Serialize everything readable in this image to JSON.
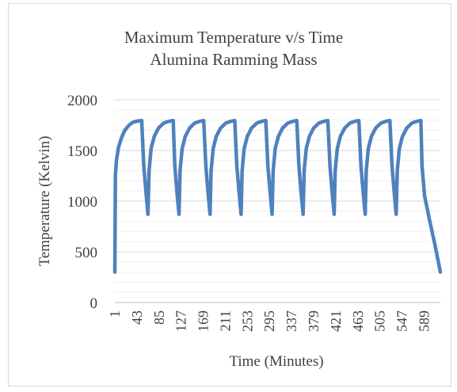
{
  "chart_data": {
    "type": "line",
    "title_lines": [
      "Maximum Temperature v/s Time",
      "Alumina Ramming Mass"
    ],
    "xlabel": "Time (Minutes)",
    "ylabel": "Temperature (Kelvin)",
    "ylim": [
      0,
      2000
    ],
    "y_major_ticks": [
      0,
      500,
      1000,
      1500,
      2000
    ],
    "y_minor_step": 100,
    "xlim": [
      1,
      620
    ],
    "x_tick_labels": [
      "1",
      "43",
      "85",
      "127",
      "169",
      "211",
      "253",
      "295",
      "337",
      "379",
      "421",
      "463",
      "505",
      "547",
      "589"
    ],
    "grid": true,
    "legend": "none",
    "series": [
      {
        "color": "#4f81bd",
        "points": [
          [
            1,
            300
          ],
          [
            2,
            1260
          ],
          [
            4,
            1400
          ],
          [
            8,
            1530
          ],
          [
            14,
            1630
          ],
          [
            20,
            1700
          ],
          [
            28,
            1750
          ],
          [
            36,
            1780
          ],
          [
            44,
            1790
          ],
          [
            52,
            1795
          ],
          [
            56,
            1350
          ],
          [
            60,
            1100
          ],
          [
            64,
            870
          ],
          [
            66,
            1300
          ],
          [
            70,
            1520
          ],
          [
            76,
            1640
          ],
          [
            84,
            1720
          ],
          [
            94,
            1770
          ],
          [
            104,
            1788
          ],
          [
            112,
            1795
          ],
          [
            115,
            1350
          ],
          [
            119,
            1100
          ],
          [
            123,
            870
          ],
          [
            125,
            1300
          ],
          [
            129,
            1520
          ],
          [
            135,
            1640
          ],
          [
            143,
            1720
          ],
          [
            153,
            1770
          ],
          [
            163,
            1788
          ],
          [
            170,
            1795
          ],
          [
            174,
            1350
          ],
          [
            178,
            1100
          ],
          [
            182,
            870
          ],
          [
            184,
            1300
          ],
          [
            188,
            1520
          ],
          [
            194,
            1640
          ],
          [
            202,
            1720
          ],
          [
            212,
            1770
          ],
          [
            222,
            1788
          ],
          [
            229,
            1795
          ],
          [
            233,
            1350
          ],
          [
            237,
            1100
          ],
          [
            241,
            870
          ],
          [
            243,
            1300
          ],
          [
            247,
            1520
          ],
          [
            253,
            1640
          ],
          [
            261,
            1720
          ],
          [
            271,
            1770
          ],
          [
            281,
            1788
          ],
          [
            288,
            1795
          ],
          [
            292,
            1350
          ],
          [
            296,
            1100
          ],
          [
            300,
            870
          ],
          [
            302,
            1300
          ],
          [
            306,
            1520
          ],
          [
            312,
            1640
          ],
          [
            320,
            1720
          ],
          [
            330,
            1770
          ],
          [
            340,
            1788
          ],
          [
            347,
            1795
          ],
          [
            351,
            1350
          ],
          [
            355,
            1100
          ],
          [
            359,
            870
          ],
          [
            361,
            1300
          ],
          [
            365,
            1520
          ],
          [
            371,
            1640
          ],
          [
            379,
            1720
          ],
          [
            389,
            1770
          ],
          [
            399,
            1788
          ],
          [
            406,
            1795
          ],
          [
            410,
            1350
          ],
          [
            414,
            1100
          ],
          [
            418,
            870
          ],
          [
            420,
            1300
          ],
          [
            424,
            1520
          ],
          [
            430,
            1640
          ],
          [
            438,
            1720
          ],
          [
            448,
            1770
          ],
          [
            458,
            1788
          ],
          [
            465,
            1795
          ],
          [
            469,
            1350
          ],
          [
            473,
            1100
          ],
          [
            477,
            870
          ],
          [
            479,
            1300
          ],
          [
            483,
            1520
          ],
          [
            489,
            1640
          ],
          [
            497,
            1720
          ],
          [
            507,
            1770
          ],
          [
            517,
            1788
          ],
          [
            524,
            1795
          ],
          [
            528,
            1350
          ],
          [
            532,
            1100
          ],
          [
            536,
            870
          ],
          [
            538,
            1300
          ],
          [
            542,
            1520
          ],
          [
            548,
            1640
          ],
          [
            556,
            1720
          ],
          [
            566,
            1770
          ],
          [
            576,
            1788
          ],
          [
            583,
            1795
          ],
          [
            585,
            1350
          ],
          [
            590,
            1050
          ],
          [
            600,
            800
          ],
          [
            610,
            560
          ],
          [
            620,
            300
          ]
        ]
      }
    ]
  }
}
